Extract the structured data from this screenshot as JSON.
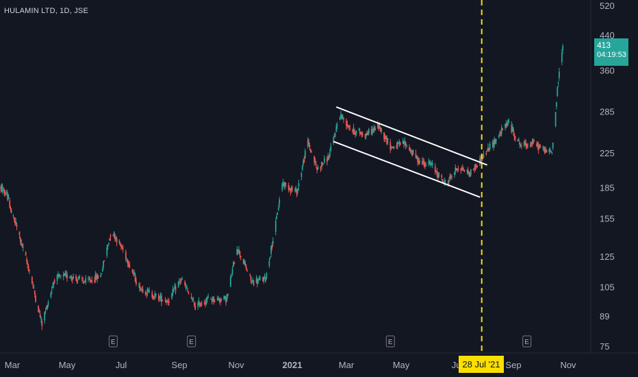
{
  "header": {
    "symbol_label": "HULAMIN LTD, 1D, JSE"
  },
  "price_badge": {
    "price": "413",
    "countdown": "04:19:53"
  },
  "date_badge": {
    "label": "28 Jul '21"
  },
  "colors": {
    "background": "#131722",
    "up": "#26a69a",
    "down": "#ef5350",
    "channel": "#ffffff",
    "vline": "#f9e000"
  },
  "chart_data": {
    "type": "candlestick",
    "title": "HULAMIN LTD, 1D, JSE",
    "y_scale": "log",
    "y_ticks": [
      75,
      89,
      105,
      125,
      155,
      185,
      225,
      285,
      360,
      440,
      520
    ],
    "x_tick_labels": [
      {
        "label": "Mar",
        "date": "2020-03-01"
      },
      {
        "label": "May",
        "date": "2020-05-01"
      },
      {
        "label": "Jul",
        "date": "2020-07-01"
      },
      {
        "label": "Sep",
        "date": "2020-09-01"
      },
      {
        "label": "Nov",
        "date": "2020-11-01"
      },
      {
        "label": "2021",
        "date": "2021-01-01"
      },
      {
        "label": "Mar",
        "date": "2021-03-01"
      },
      {
        "label": "May",
        "date": "2021-05-01"
      },
      {
        "label": "Jul",
        "date": "2021-07-01"
      },
      {
        "label": "Sep",
        "date": "2021-09-01"
      },
      {
        "label": "Nov",
        "date": "2021-11-01"
      }
    ],
    "x_range": [
      "2020-02-01",
      "2021-11-30"
    ],
    "y_range": [
      72,
      540
    ],
    "price_path": [
      [
        "2020-02-03",
        185
      ],
      [
        "2020-02-20",
        175
      ],
      [
        "2020-03-05",
        150
      ],
      [
        "2020-03-20",
        115
      ],
      [
        "2020-04-03",
        85
      ],
      [
        "2020-04-17",
        110
      ],
      [
        "2020-05-04",
        112
      ],
      [
        "2020-05-22",
        108
      ],
      [
        "2020-06-08",
        112
      ],
      [
        "2020-06-20",
        145
      ],
      [
        "2020-07-03",
        130
      ],
      [
        "2020-07-20",
        105
      ],
      [
        "2020-08-05",
        100
      ],
      [
        "2020-08-20",
        97
      ],
      [
        "2020-09-03",
        110
      ],
      [
        "2020-09-18",
        94
      ],
      [
        "2020-10-02",
        98
      ],
      [
        "2020-10-22",
        98
      ],
      [
        "2020-11-02",
        132
      ],
      [
        "2020-11-18",
        108
      ],
      [
        "2020-12-03",
        110
      ],
      [
        "2020-12-14",
        150
      ],
      [
        "2020-12-21",
        190
      ],
      [
        "2021-01-06",
        180
      ],
      [
        "2021-01-18",
        240
      ],
      [
        "2021-01-28",
        205
      ],
      [
        "2021-02-10",
        220
      ],
      [
        "2021-02-22",
        280
      ],
      [
        "2021-03-08",
        255
      ],
      [
        "2021-03-23",
        250
      ],
      [
        "2021-04-06",
        262
      ],
      [
        "2021-04-20",
        232
      ],
      [
        "2021-05-05",
        238
      ],
      [
        "2021-05-20",
        215
      ],
      [
        "2021-06-03",
        210
      ],
      [
        "2021-06-18",
        188
      ],
      [
        "2021-07-02",
        208
      ],
      [
        "2021-07-15",
        200
      ],
      [
        "2021-07-28",
        218
      ],
      [
        "2021-08-11",
        240
      ],
      [
        "2021-08-26",
        268
      ],
      [
        "2021-09-09",
        235
      ],
      [
        "2021-09-23",
        238
      ],
      [
        "2021-10-07",
        228
      ],
      [
        "2021-10-14",
        225
      ],
      [
        "2021-10-21",
        340
      ],
      [
        "2021-10-26",
        413
      ]
    ],
    "channel_lines": [
      {
        "start": [
          "2021-02-18",
          292
        ],
        "end": [
          "2021-08-03",
          210
        ]
      },
      {
        "start": [
          "2021-02-15",
          240
        ],
        "end": [
          "2021-07-26",
          175
        ]
      }
    ],
    "vertical_marker": {
      "date": "2021-07-28",
      "style": "dashed"
    },
    "earnings_markers": [
      {
        "label": "E",
        "date": "2020-06-22"
      },
      {
        "label": "E",
        "date": "2020-09-14"
      },
      {
        "label": "E",
        "date": "2021-04-19"
      },
      {
        "label": "E",
        "date": "2021-09-16"
      }
    ],
    "last_price": 413
  }
}
